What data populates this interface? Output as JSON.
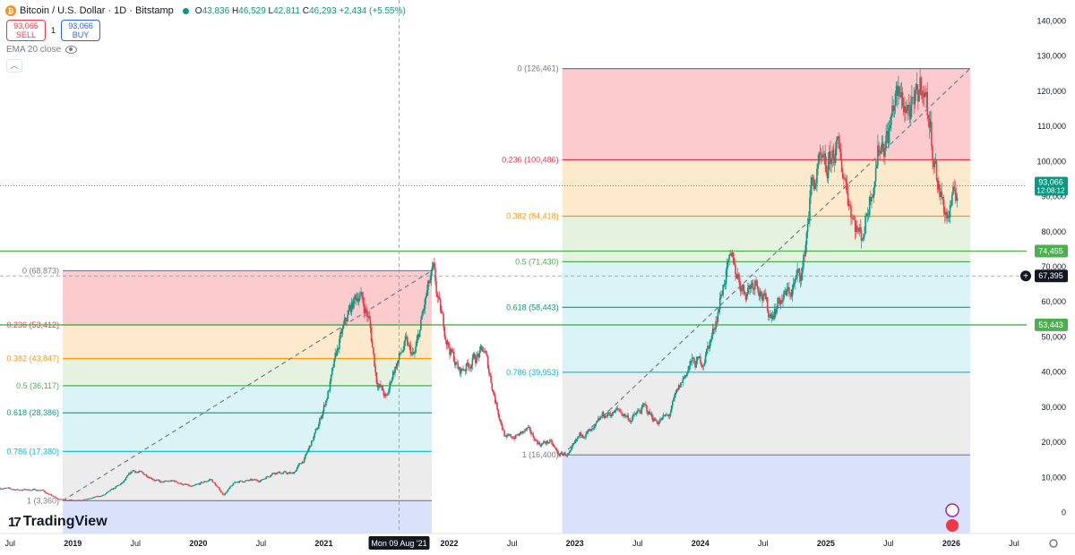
{
  "header": {
    "symbol_icon": "bitcoin-icon",
    "title": "Bitcoin / U.S. Dollar · 1D · Bitstamp",
    "o_label": "O",
    "o_value": "43,836",
    "h_label": "H",
    "h_value": "46,529",
    "l_label": "L",
    "l_value": "42,811",
    "c_label": "C",
    "c_value": "46,293",
    "change": "+2,434 (+5.55%)"
  },
  "trade": {
    "sell_price": "93,065",
    "sell_label": "SELL",
    "spread": "1",
    "buy_price": "93,066",
    "buy_label": "BUY"
  },
  "indicator": {
    "label": "EMA 20 close",
    "icon": "eye-icon"
  },
  "collapse_icon": "chevron-up-icon",
  "logo": {
    "mark": "17",
    "text": "TradingView"
  },
  "colors": {
    "up": "#089981",
    "down": "#f23645",
    "fib_0": "#f7a1a5",
    "fib_236": "#fbd7a1",
    "fib_382": "#cfe8c4",
    "fib_618": "#b9e9ef",
    "fib_786": "#dcdcdc",
    "fib_1": "#c9d6f8"
  },
  "chart_data": {
    "type": "candlestick",
    "title": "Bitcoin / U.S. Dollar · 1D · Bitstamp",
    "ylim": [
      -6000,
      146000
    ],
    "y_ticks": [
      0,
      10000,
      20000,
      30000,
      40000,
      50000,
      60000,
      70000,
      80000,
      90000,
      100000,
      110000,
      120000,
      130000,
      140000
    ],
    "y_tick_labels": [
      "0",
      "10,000",
      "20,000",
      "30,000",
      "40,000",
      "50,000",
      "60,000",
      "70,000",
      "80,000",
      "90,000",
      "100,000",
      "110,000",
      "120,000",
      "130,000",
      "140,000"
    ],
    "x_start": 2018.42,
    "x_end": 2026.6,
    "x_ticks": [
      {
        "t": 2018.5,
        "label": "Jul"
      },
      {
        "t": 2019.0,
        "label": "2019"
      },
      {
        "t": 2019.5,
        "label": "Jul"
      },
      {
        "t": 2020.0,
        "label": "2020"
      },
      {
        "t": 2020.5,
        "label": "Jul"
      },
      {
        "t": 2021.0,
        "label": "2021"
      },
      {
        "t": 2022.0,
        "label": "2022"
      },
      {
        "t": 2022.5,
        "label": "Jul"
      },
      {
        "t": 2023.0,
        "label": "2023"
      },
      {
        "t": 2023.5,
        "label": "Jul"
      },
      {
        "t": 2024.0,
        "label": "2024"
      },
      {
        "t": 2024.5,
        "label": "Jul"
      },
      {
        "t": 2025.0,
        "label": "2025"
      },
      {
        "t": 2025.5,
        "label": "Jul"
      },
      {
        "t": 2026.0,
        "label": "2026"
      },
      {
        "t": 2026.5,
        "label": "Jul"
      }
    ],
    "crosshair": {
      "t": 2021.6,
      "label": "Mon 09 Aug '21",
      "price": 67395,
      "price_label": "67,395"
    },
    "series_anchors": [
      [
        2018.42,
        7000
      ],
      [
        2018.55,
        6500
      ],
      [
        2018.75,
        6400
      ],
      [
        2018.88,
        3800
      ],
      [
        2019.0,
        3500
      ],
      [
        2019.12,
        3800
      ],
      [
        2019.25,
        5000
      ],
      [
        2019.4,
        8500
      ],
      [
        2019.48,
        12000
      ],
      [
        2019.6,
        10500
      ],
      [
        2019.7,
        8500
      ],
      [
        2019.8,
        9000
      ],
      [
        2019.95,
        7200
      ],
      [
        2020.1,
        9500
      ],
      [
        2020.2,
        5000
      ],
      [
        2020.3,
        8800
      ],
      [
        2020.5,
        9200
      ],
      [
        2020.6,
        11500
      ],
      [
        2020.75,
        11000
      ],
      [
        2020.85,
        15500
      ],
      [
        2020.95,
        24000
      ],
      [
        2021.04,
        35000
      ],
      [
        2021.12,
        48000
      ],
      [
        2021.2,
        57000
      ],
      [
        2021.28,
        63000
      ],
      [
        2021.36,
        55000
      ],
      [
        2021.42,
        38000
      ],
      [
        2021.5,
        32000
      ],
      [
        2021.55,
        40000
      ],
      [
        2021.65,
        48000
      ],
      [
        2021.72,
        44000
      ],
      [
        2021.82,
        62000
      ],
      [
        2021.87,
        68000
      ],
      [
        2021.92,
        58000
      ],
      [
        2022.0,
        47000
      ],
      [
        2022.08,
        40000
      ],
      [
        2022.2,
        44000
      ],
      [
        2022.28,
        46000
      ],
      [
        2022.38,
        30000
      ],
      [
        2022.45,
        21000
      ],
      [
        2022.55,
        22000
      ],
      [
        2022.62,
        23500
      ],
      [
        2022.72,
        19500
      ],
      [
        2022.8,
        20200
      ],
      [
        2022.87,
        16500
      ],
      [
        2022.96,
        16600
      ],
      [
        2023.05,
        22500
      ],
      [
        2023.15,
        23000
      ],
      [
        2023.22,
        27500
      ],
      [
        2023.35,
        29000
      ],
      [
        2023.45,
        26500
      ],
      [
        2023.55,
        30000
      ],
      [
        2023.65,
        26000
      ],
      [
        2023.75,
        27500
      ],
      [
        2023.82,
        34500
      ],
      [
        2023.92,
        42500
      ],
      [
        2024.02,
        43000
      ],
      [
        2024.1,
        51000
      ],
      [
        2024.2,
        68000
      ],
      [
        2024.26,
        71000
      ],
      [
        2024.35,
        63000
      ],
      [
        2024.45,
        67000
      ],
      [
        2024.55,
        56000
      ],
      [
        2024.62,
        60000
      ],
      [
        2024.72,
        63000
      ],
      [
        2024.82,
        70000
      ],
      [
        2024.88,
        92000
      ],
      [
        2024.95,
        98000
      ],
      [
        2025.0,
        96000
      ],
      [
        2025.08,
        104000
      ],
      [
        2025.15,
        96000
      ],
      [
        2025.22,
        84000
      ],
      [
        2025.28,
        78000
      ],
      [
        2025.32,
        84000
      ],
      [
        2025.42,
        104000
      ],
      [
        2025.5,
        108000
      ],
      [
        2025.55,
        118000
      ],
      [
        2025.62,
        117000
      ],
      [
        2025.7,
        113000
      ],
      [
        2025.77,
        124000
      ],
      [
        2025.82,
        112000
      ],
      [
        2025.9,
        92000
      ],
      [
        2025.97,
        84000
      ],
      [
        2026.0,
        87000
      ],
      [
        2026.02,
        88500
      ],
      [
        2026.05,
        93066
      ]
    ],
    "last_price": {
      "value": 93066,
      "label": "93,066",
      "countdown": "12:08:12"
    },
    "price_tags": [
      {
        "value": 74455,
        "label": "74,455"
      },
      {
        "value": 53443,
        "label": "53,443"
      }
    ],
    "horizontal_lines": [
      74455,
      53443
    ],
    "fib_retracements": [
      {
        "name": "fib-2018-2021",
        "t_start": 2018.92,
        "t_end": 2021.86,
        "low": 3360,
        "high": 68873,
        "levels": [
          {
            "ratio": "0",
            "value": 68873,
            "label": "0 (68,873)"
          },
          {
            "ratio": "0.236",
            "value": 53412,
            "label": "0.236 (53,412)"
          },
          {
            "ratio": "0.382",
            "value": 43847,
            "label": "0.382 (43,847)"
          },
          {
            "ratio": "0.5",
            "value": 36117,
            "label": "0.5 (36,117)"
          },
          {
            "ratio": "0.618",
            "value": 28386,
            "label": "0.618 (28,386)"
          },
          {
            "ratio": "0.786",
            "value": 17380,
            "label": "0.786 (17,380)"
          },
          {
            "ratio": "1",
            "value": 3360,
            "label": "1 (3,360)"
          }
        ]
      },
      {
        "name": "fib-2022-2025",
        "t_start": 2022.9,
        "t_end": 2026.15,
        "low": 16400,
        "high": 126461,
        "levels": [
          {
            "ratio": "0",
            "value": 126461,
            "label": "0 (126,461)"
          },
          {
            "ratio": "0.236",
            "value": 100486,
            "label": "0.236 (100,486)"
          },
          {
            "ratio": "0.382",
            "value": 84418,
            "label": "0.382 (84,418)"
          },
          {
            "ratio": "0.5",
            "value": 71430,
            "label": "0.5 (71,430)"
          },
          {
            "ratio": "0.618",
            "value": 58443,
            "label": "0.618 (58,443)"
          },
          {
            "ratio": "0.786",
            "value": 39953,
            "label": "0.786 (39,953)"
          },
          {
            "ratio": "1",
            "value": 16400,
            "label": "1 (16,400)"
          }
        ]
      }
    ]
  }
}
